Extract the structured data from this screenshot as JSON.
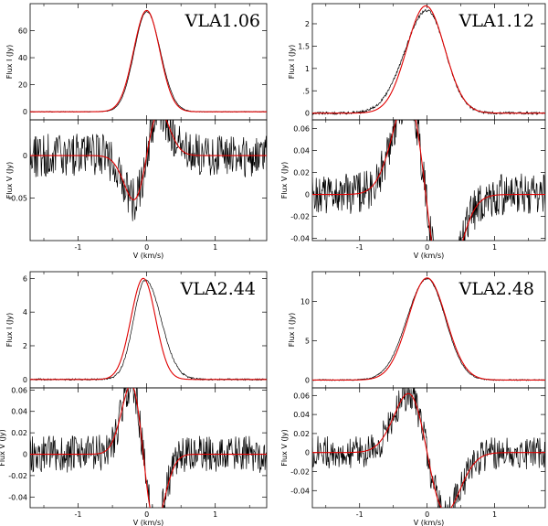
{
  "chart_data": [
    {
      "type": "line",
      "title": "VLA1.06",
      "xlabel": "V (km/s)",
      "xlim": [
        -1.7,
        1.75
      ],
      "xticks": [
        -1,
        0,
        1
      ],
      "xtick_labels": [
        "-1",
        "0",
        "1"
      ],
      "top": {
        "ylabel": "Flux I (Jy)",
        "ylim": [
          -6,
          80
        ],
        "yticks": [
          0,
          20,
          40,
          60
        ],
        "ytick_labels": [
          "0",
          "20",
          "40",
          "60"
        ],
        "profile": {
          "kind": "gauss",
          "amp": 75,
          "center": 0.0,
          "sigma": 0.19,
          "base": 0
        },
        "series": [
          {
            "kind": "observed",
            "color": "#000000",
            "amp": 74,
            "center": 0.0,
            "sigma_left": 0.182,
            "sigma_right": 0.2,
            "noise": 0.3
          },
          {
            "kind": "fit",
            "color": "#e00000",
            "amp": 75,
            "center": 0.0,
            "sigma": 0.19
          }
        ]
      },
      "bottom": {
        "ylabel": "Flux V (Jy)",
        "ylim": [
          -0.1,
          0.042
        ],
        "yticks": [
          -0.05,
          0
        ],
        "ytick_labels": [
          "-0.05",
          "0"
        ],
        "series": [
          {
            "kind": "observed",
            "color": "#000000",
            "noise": 0.016
          },
          {
            "kind": "fit",
            "color": "#e00000",
            "scale": -0.052
          }
        ]
      }
    },
    {
      "type": "line",
      "title": "VLA1.12",
      "xlabel": "V (km/s)",
      "xlim": [
        -1.7,
        1.75
      ],
      "xticks": [
        -1,
        0,
        1
      ],
      "xtick_labels": [
        "-1",
        "0",
        "1"
      ],
      "top": {
        "ylabel": "Flux I (Jy)",
        "ylim": [
          -0.15,
          2.45
        ],
        "yticks": [
          0,
          0.5,
          1,
          1.5,
          2
        ],
        "ytick_labels": [
          "0",
          ".5",
          "1",
          "1.5",
          "2"
        ],
        "profile": {
          "kind": "gauss",
          "amp": 2.4,
          "center": -0.02,
          "sigma": 0.28,
          "base": 0
        },
        "series": [
          {
            "kind": "observed",
            "color": "#000000",
            "amp": 2.3,
            "center": 0.0,
            "sigma_left": 0.33,
            "sigma_right": 0.27,
            "noise": 0.03
          },
          {
            "kind": "fit",
            "color": "#e00000",
            "amp": 2.4,
            "center": -0.02,
            "sigma": 0.28
          }
        ]
      },
      "bottom": {
        "ylabel": "Flux V (Jy)",
        "ylim": [
          -0.042,
          0.068
        ],
        "yticks": [
          -0.04,
          -0.02,
          0,
          0.02,
          0.04,
          0.06
        ],
        "ytick_labels": [
          "-0.04",
          "-0.02",
          "0",
          "0.02",
          "0.04",
          "0.06"
        ],
        "series": [
          {
            "kind": "observed",
            "color": "#000000",
            "noise": 0.012
          },
          {
            "kind": "fit",
            "color": "#e00000",
            "scale": 0.089
          }
        ]
      }
    },
    {
      "type": "line",
      "title": "VLA2.44",
      "xlabel": "V (km/s)",
      "xlim": [
        -1.7,
        1.75
      ],
      "xticks": [
        -1,
        0,
        1
      ],
      "xtick_labels": [
        "-1",
        "0",
        "1"
      ],
      "top": {
        "ylabel": "Flux I (Jy)",
        "ylim": [
          -0.5,
          6.4
        ],
        "yticks": [
          0,
          2,
          4,
          6
        ],
        "ytick_labels": [
          "0",
          "2",
          "4",
          "6"
        ],
        "profile": {
          "kind": "gauss",
          "amp": 6.0,
          "center": -0.05,
          "sigma": 0.18,
          "base": 0
        },
        "series": [
          {
            "kind": "observed",
            "color": "#000000",
            "amp": 5.9,
            "center": -0.02,
            "sigma_left": 0.17,
            "sigma_right": 0.23,
            "noise": 0.05
          },
          {
            "kind": "fit",
            "color": "#e00000",
            "amp": 6.0,
            "center": -0.05,
            "sigma": 0.18
          }
        ]
      },
      "bottom": {
        "ylabel": "Flux V (Jy)",
        "ylim": [
          -0.05,
          0.062
        ],
        "yticks": [
          -0.04,
          -0.02,
          0,
          0.02,
          0.04,
          0.06
        ],
        "ytick_labels": [
          "-0.04",
          "-0.02",
          "0",
          "0.02",
          "0.04",
          "0.06"
        ],
        "series": [
          {
            "kind": "observed",
            "color": "#000000",
            "noise": 0.011
          },
          {
            "kind": "fit",
            "color": "#e00000",
            "scale": 0.065
          }
        ]
      }
    },
    {
      "type": "line",
      "title": "VLA2.48",
      "xlabel": "V (km/s)",
      "xlim": [
        -1.7,
        1.75
      ],
      "xticks": [
        -1,
        0,
        1
      ],
      "xtick_labels": [
        "-1",
        "0",
        "1"
      ],
      "top": {
        "ylabel": "Flux I (Jy)",
        "ylim": [
          -1,
          13.8
        ],
        "yticks": [
          0,
          5,
          10
        ],
        "ytick_labels": [
          "0",
          "5",
          "10"
        ],
        "profile": {
          "kind": "gauss",
          "amp": 13,
          "center": 0.0,
          "sigma": 0.28,
          "base": 0
        },
        "series": [
          {
            "kind": "observed",
            "color": "#000000",
            "amp": 12.9,
            "center": 0.0,
            "sigma_left": 0.3,
            "sigma_right": 0.27,
            "noise": 0.07
          },
          {
            "kind": "fit",
            "color": "#e00000",
            "amp": 13,
            "center": 0.0,
            "sigma": 0.28
          }
        ]
      },
      "bottom": {
        "ylabel": "Flux V (Jy)",
        "ylim": [
          -0.058,
          0.068
        ],
        "yticks": [
          -0.04,
          -0.02,
          0,
          0.02,
          0.04,
          0.06
        ],
        "ytick_labels": [
          "-0.04",
          "-0.02",
          "0",
          "0.02",
          "0.04",
          "0.06"
        ],
        "series": [
          {
            "kind": "observed",
            "color": "#000000",
            "noise": 0.011
          },
          {
            "kind": "fit",
            "color": "#e00000",
            "scale": 0.062
          }
        ]
      }
    }
  ]
}
